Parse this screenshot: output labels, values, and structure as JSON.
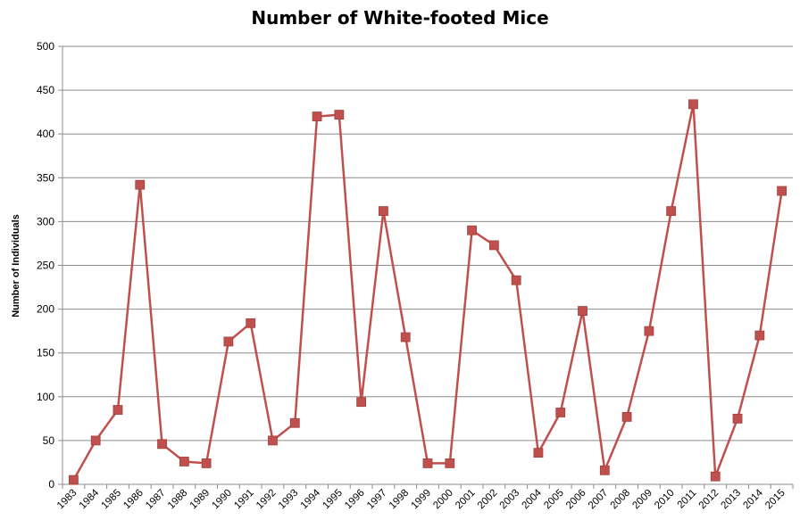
{
  "chart_data": {
    "type": "line",
    "title": "Number of White-footed Mice",
    "ylabel": "Number of Individuals",
    "xlabel": "",
    "ylim": [
      0,
      500
    ],
    "yticks": [
      0,
      50,
      100,
      150,
      200,
      250,
      300,
      350,
      400,
      450,
      500
    ],
    "grid": true,
    "legend": "none",
    "color": "#C0504D",
    "marker": "square",
    "categories": [
      "1983",
      "1984",
      "1985",
      "1986",
      "1987",
      "1988",
      "1989",
      "1990",
      "1991",
      "1992",
      "1993",
      "1994",
      "1995",
      "1996",
      "1997",
      "1998",
      "1999",
      "2000",
      "2001",
      "2002",
      "2003",
      "2004",
      "2005",
      "2006",
      "2007",
      "2008",
      "2009",
      "2010",
      "2011",
      "2012",
      "2013",
      "2014",
      "2015"
    ],
    "series": [
      {
        "values": [
          5,
          50,
          85,
          342,
          46,
          26,
          24,
          163,
          184,
          50,
          70,
          420,
          422,
          94,
          312,
          168,
          24,
          24,
          290,
          273,
          233,
          36,
          82,
          198,
          16,
          77,
          175,
          312,
          434,
          9,
          75,
          170,
          335
        ]
      }
    ]
  }
}
